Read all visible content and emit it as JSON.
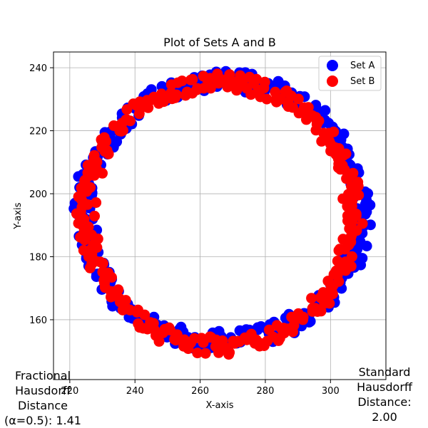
{
  "chart_data": {
    "type": "scatter",
    "title": "Plot of Sets A and B",
    "xlabel": "X-axis",
    "ylabel": "Y-axis",
    "xlim": [
      215,
      317
    ],
    "ylim": [
      141,
      245
    ],
    "xticks": [
      220,
      240,
      260,
      280,
      300
    ],
    "yticks": [
      160,
      180,
      200,
      220,
      240
    ],
    "grid": true,
    "legend_position": "top-right",
    "series": [
      {
        "name": "Set A",
        "color": "#0000ff",
        "shape": "circle-ring",
        "center": [
          267,
          194.5
        ],
        "x_radius_range": [
          39,
          46
        ],
        "y_radius_range": [
          38,
          45
        ],
        "point_count": 320
      },
      {
        "name": "Set B",
        "color": "#ff0000",
        "shape": "circle-ring",
        "center": [
          266,
          193.5
        ],
        "x_radius_range": [
          38,
          44
        ],
        "y_radius_range": [
          39,
          45
        ],
        "point_count": 320
      }
    ]
  },
  "annotations": {
    "fractional_text": "Fractional\nHausdorff\nDistance\n(α=0.5): 1.41",
    "standard_text": "Standard\nHausdorff\nDistance:\n2.00"
  }
}
